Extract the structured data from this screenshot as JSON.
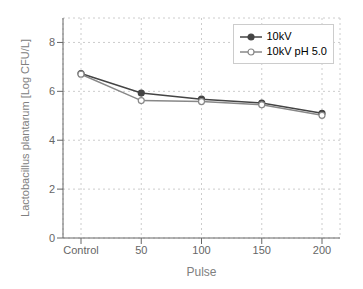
{
  "chart_data": {
    "type": "line",
    "categories": [
      "Control",
      "50",
      "100",
      "150",
      "200"
    ],
    "series": [
      {
        "name": "10kV",
        "color": "#444444",
        "marker": "circle",
        "values": [
          6.73,
          5.93,
          5.68,
          5.52,
          5.1
        ]
      },
      {
        "name": "10kV pH 5.0",
        "color": "#888888",
        "marker": "circle_open",
        "values": [
          6.7,
          5.62,
          5.58,
          5.45,
          5.02
        ]
      }
    ],
    "xlabel": "Pulse",
    "ylabel": "Lactobacillus plantarum [Log CFU/L]",
    "ylim": [
      0,
      9
    ],
    "yticks": [
      0,
      2,
      4,
      6,
      8
    ],
    "grid": true,
    "legend": "upper right"
  }
}
